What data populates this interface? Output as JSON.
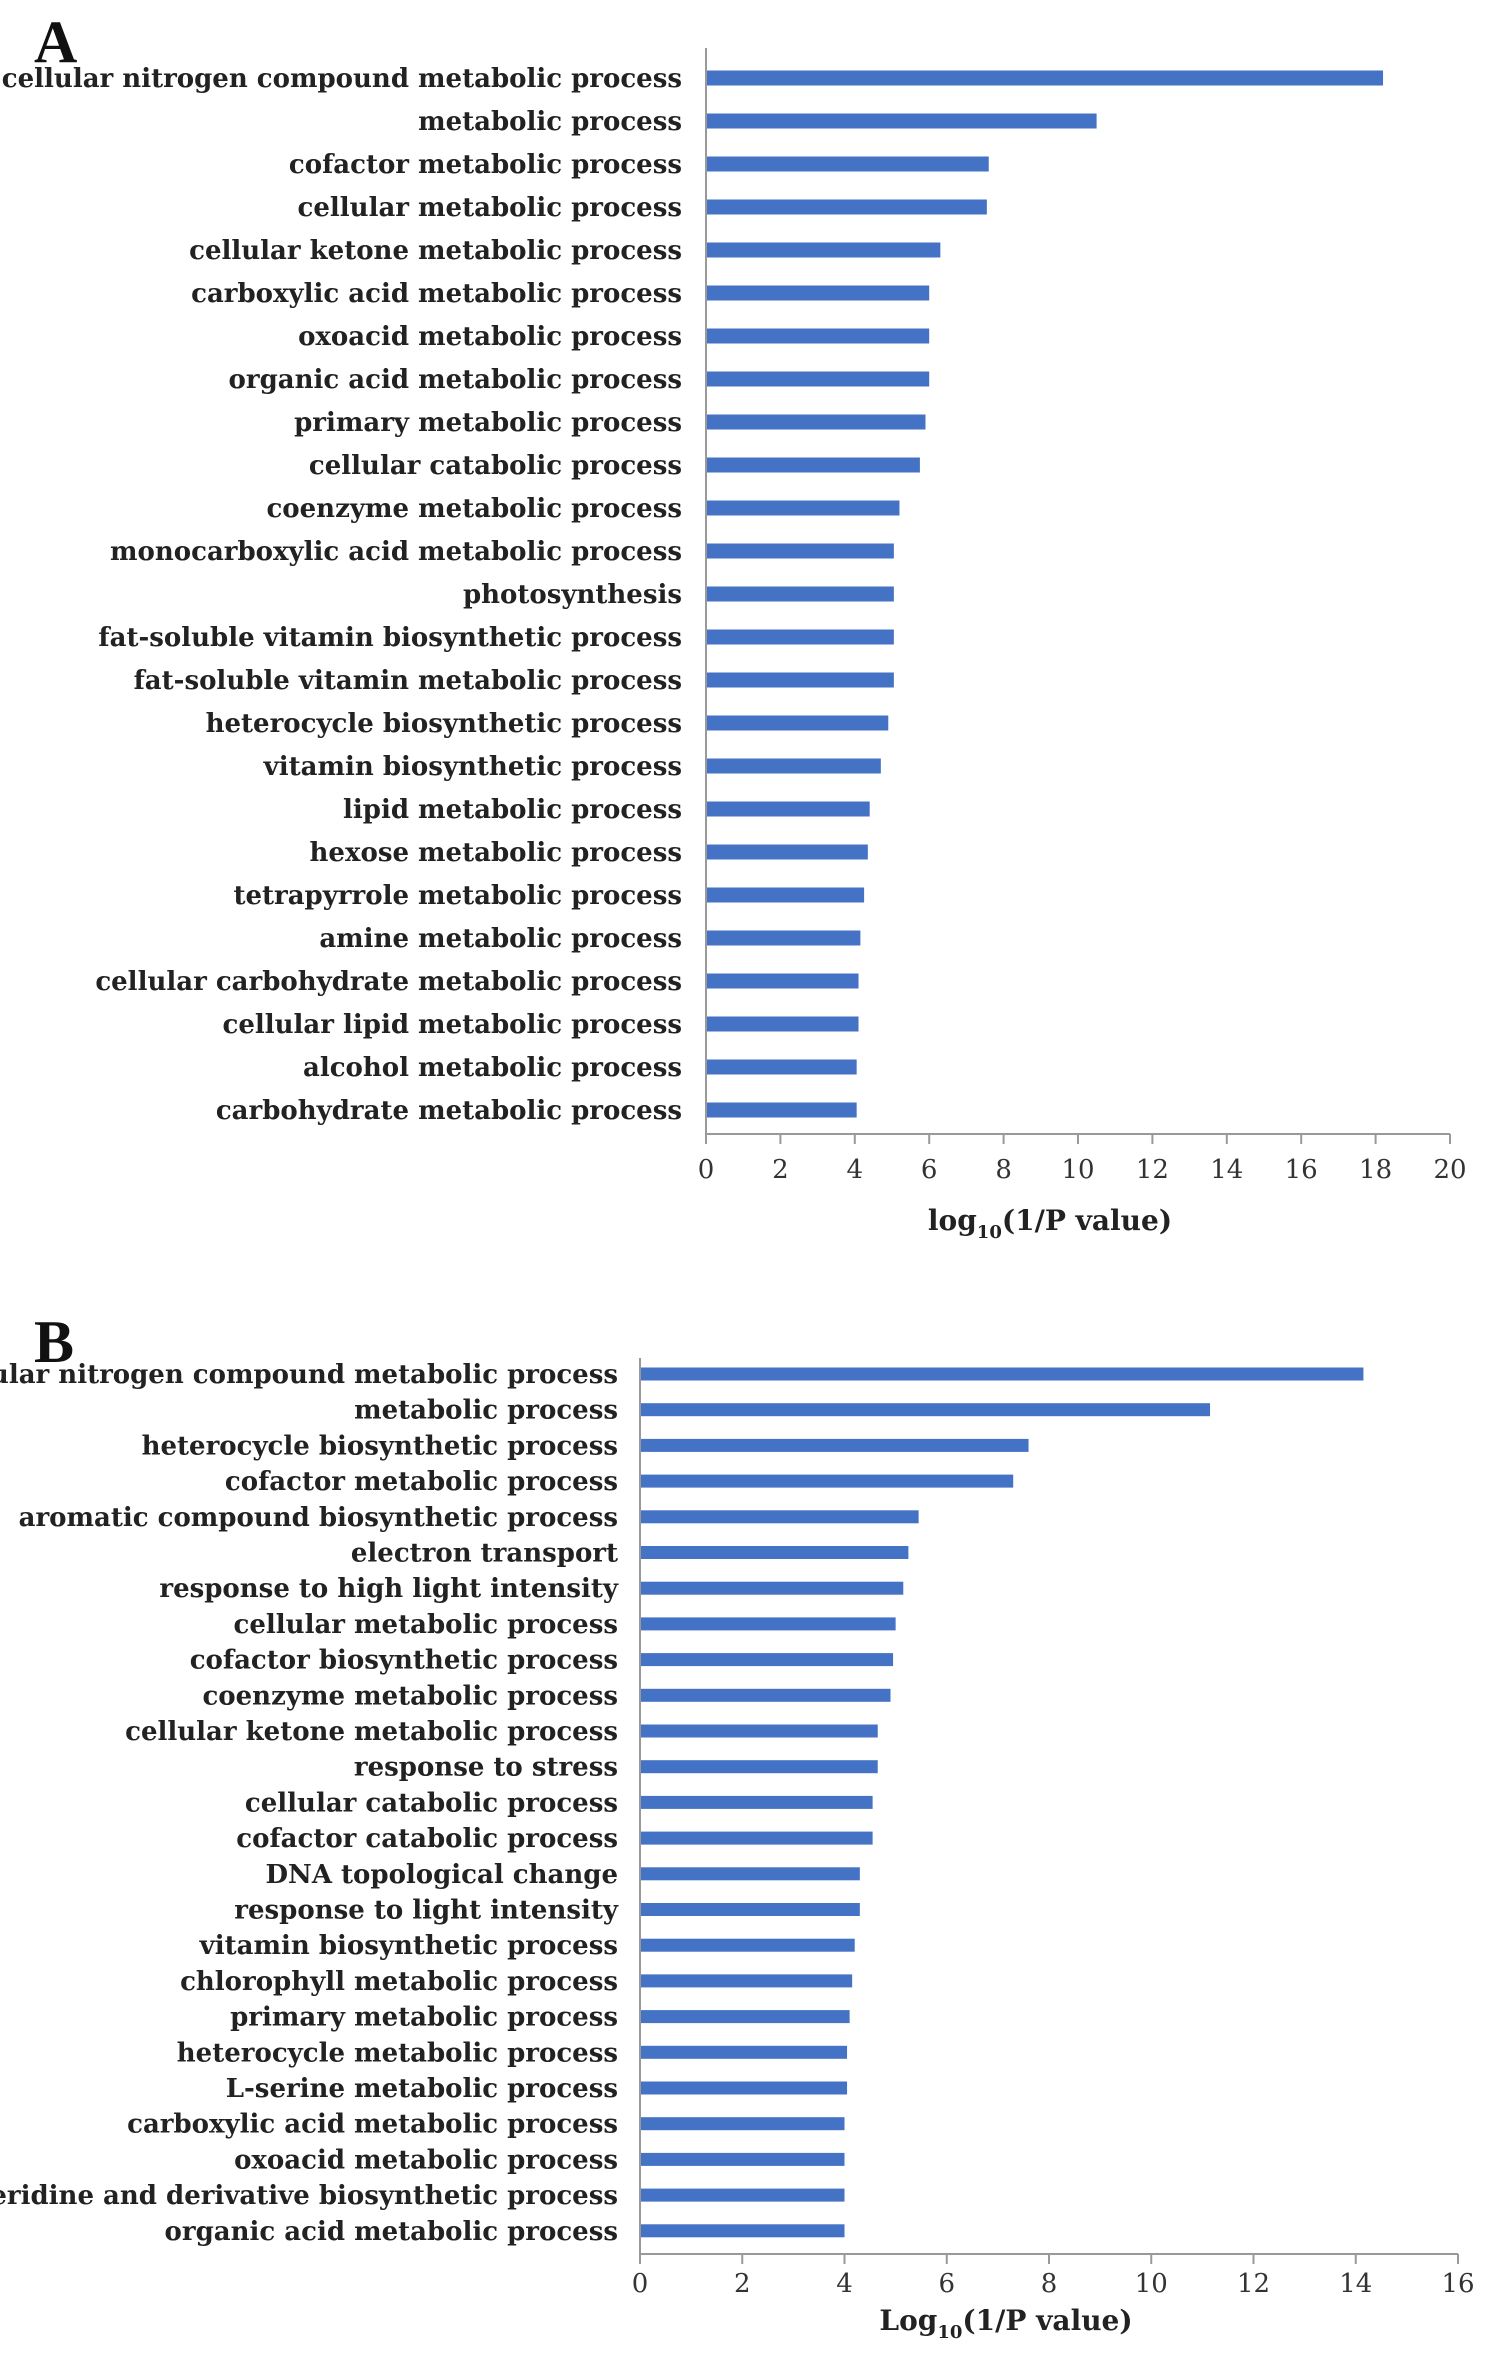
{
  "chart_data": [
    {
      "type": "bar",
      "orientation": "horizontal",
      "panel_label": "A",
      "xlabel_main": "log",
      "xlabel_sub": "10",
      "xlabel_rest": "(1/P value)",
      "xlim": [
        0,
        20
      ],
      "xticks": [
        "0",
        "2",
        "4",
        "6",
        "8",
        "10",
        "12",
        "14",
        "16",
        "18",
        "20"
      ],
      "bar_color": "#4472C4",
      "categories": [
        "cellular nitrogen compound metabolic process",
        "metabolic process",
        "cofactor metabolic process",
        "cellular metabolic process",
        "cellular ketone metabolic process",
        "carboxylic acid metabolic process",
        "oxoacid metabolic process",
        "organic acid metabolic process",
        "primary metabolic process",
        "cellular catabolic process",
        "coenzyme metabolic process",
        "monocarboxylic acid metabolic process",
        "photosynthesis",
        "fat-soluble vitamin biosynthetic process",
        "fat-soluble vitamin metabolic process",
        "heterocycle biosynthetic process",
        "vitamin biosynthetic process",
        "lipid metabolic process",
        "hexose metabolic process",
        "tetrapyrrole metabolic process",
        "amine metabolic process",
        "cellular carbohydrate metabolic process",
        "cellular lipid metabolic process",
        "alcohol metabolic process",
        "carbohydrate metabolic process"
      ],
      "values": [
        18.2,
        10.5,
        7.6,
        7.55,
        6.3,
        6.0,
        6.0,
        6.0,
        5.9,
        5.75,
        5.2,
        5.05,
        5.05,
        5.05,
        5.05,
        4.9,
        4.7,
        4.4,
        4.35,
        4.25,
        4.15,
        4.1,
        4.1,
        4.05,
        4.05
      ]
    },
    {
      "type": "bar",
      "orientation": "horizontal",
      "panel_label": "B",
      "xlabel_main": "Log",
      "xlabel_sub": "10",
      "xlabel_rest": "(1/P value)",
      "xlim": [
        0,
        16
      ],
      "xticks": [
        "0",
        "2",
        "4",
        "6",
        "8",
        "10",
        "12",
        "14",
        "16"
      ],
      "bar_color": "#4472C4",
      "categories": [
        "cellular nitrogen compound metabolic process",
        "metabolic process",
        "heterocycle biosynthetic process",
        "cofactor metabolic process",
        "aromatic compound biosynthetic process",
        "electron transport",
        "response to high light intensity",
        "cellular metabolic process",
        "cofactor biosynthetic process",
        "coenzyme metabolic process",
        "cellular ketone metabolic process",
        "response to stress",
        "cellular catabolic process",
        "cofactor catabolic process",
        "DNA topological change",
        "response to light intensity",
        "vitamin biosynthetic process",
        "chlorophyll metabolic process",
        "primary metabolic process",
        "heterocycle metabolic process",
        "L-serine metabolic process",
        "carboxylic acid metabolic process",
        "oxoacid metabolic process",
        "pteridine and derivative biosynthetic process",
        "organic acid metabolic process"
      ],
      "values": [
        14.15,
        11.15,
        7.6,
        7.3,
        5.45,
        5.25,
        5.15,
        5.0,
        4.95,
        4.9,
        4.65,
        4.65,
        4.55,
        4.55,
        4.3,
        4.3,
        4.2,
        4.15,
        4.1,
        4.05,
        4.05,
        4.0,
        4.0,
        4.0,
        4.0
      ]
    }
  ]
}
